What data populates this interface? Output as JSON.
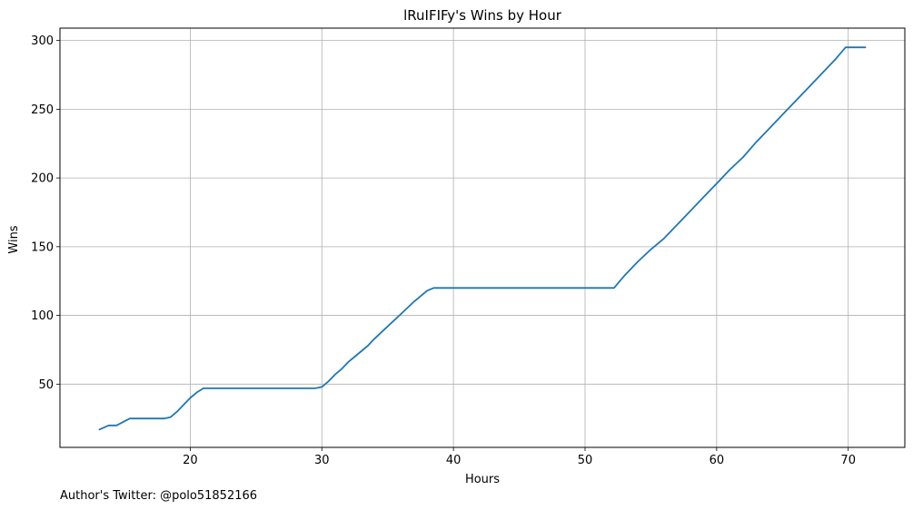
{
  "chart_data": {
    "type": "line",
    "title": "lRuIFIFy's Wins by Hour",
    "xlabel": "Hours",
    "ylabel": "Wins",
    "xlim": [
      10.1,
      74.3
    ],
    "ylim": [
      4,
      309
    ],
    "x_ticks": [
      20,
      30,
      40,
      50,
      60,
      70
    ],
    "y_ticks": [
      50,
      100,
      150,
      200,
      250,
      300
    ],
    "grid": true,
    "series": [
      {
        "color": "#1f77b4",
        "x": [
          13.1,
          13.8,
          14.4,
          15.4,
          16.0,
          17.0,
          18.0,
          18.5,
          19.0,
          19.5,
          20.0,
          20.5,
          21.0,
          21.6,
          22.5,
          25.0,
          28.0,
          29.5,
          30.0,
          30.5,
          31.0,
          31.5,
          32.0,
          32.5,
          33.0,
          33.5,
          34.0,
          35.0,
          36.0,
          37.0,
          38.0,
          38.5,
          40.0,
          45.0,
          50.0,
          52.2,
          53.0,
          54.0,
          55.0,
          56.0,
          57.0,
          58.0,
          59.0,
          60.0,
          61.0,
          62.0,
          63.0,
          64.0,
          65.0,
          66.0,
          67.0,
          68.0,
          69.0,
          69.8,
          70.5,
          71.3
        ],
        "y": [
          17,
          20,
          20,
          25,
          25,
          25,
          25,
          26,
          30,
          35,
          40,
          44,
          47,
          47,
          47,
          47,
          47,
          47,
          48,
          52,
          57,
          61,
          66,
          70,
          74,
          78,
          83,
          92,
          101,
          110,
          118,
          120,
          120,
          120,
          120,
          120,
          129,
          139,
          148,
          156,
          166,
          176,
          186,
          196,
          206,
          215,
          226,
          236,
          246,
          256,
          266,
          276,
          286,
          295,
          295,
          295
        ]
      }
    ]
  },
  "footer": {
    "note": "Author's Twitter: @polo51852166"
  }
}
